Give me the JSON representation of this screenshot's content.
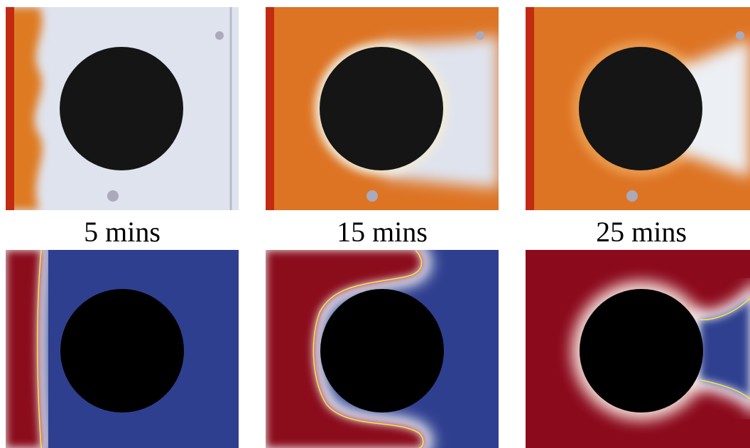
{
  "panels": [
    {
      "label": "5 mins"
    },
    {
      "label": "15 mins"
    },
    {
      "label": "25 mins"
    }
  ]
}
